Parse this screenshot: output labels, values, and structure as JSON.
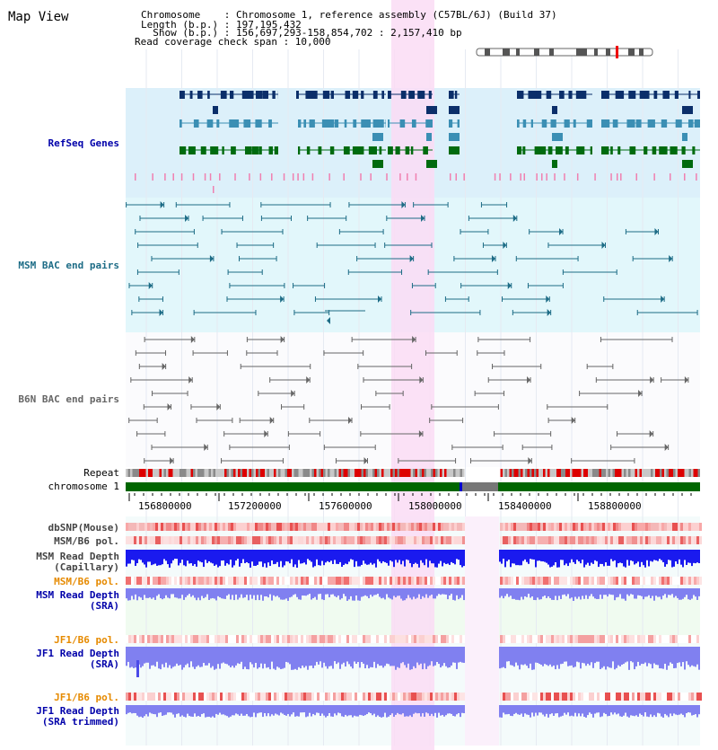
{
  "header": {
    "title": "Map View",
    "chromosome_line": "Chromosome    : Chromosome 1, reference assembly (C57BL/6J) (Build 37)",
    "length_line": "Length (b.p.) : 197,195,432",
    "show_line": "  Show (b.p.) : 156,697,293-158,854,702 : 2,157,410 bp",
    "coverage_line": "Read coverage check span : 10,000"
  },
  "tracks": {
    "refseq": "RefSeq Genes",
    "msm_bac": "MSM BAC end pairs",
    "b6n_bac": "B6N BAC end pairs",
    "repeat": "Repeat",
    "chromosome": "chromosome 1",
    "dbsnp": "dbSNP(Mouse)",
    "msm_b6_pol": "MSM/B6 pol.",
    "msm_depth_cap_1": "MSM Read Depth",
    "msm_depth_cap_2": "(Capillary)",
    "msm_b6_pol_sra": "MSM/B6 pol.",
    "msm_depth_sra_1": "MSM Read Depth",
    "msm_depth_sra_2": "(SRA)",
    "jf1_b6_pol": "JF1/B6 pol.",
    "jf1_depth_sra_1": "JF1 Read Depth",
    "jf1_depth_sra_2": "(SRA)",
    "jf1_b6_pol_trim": "JF1/B6 pol.",
    "jf1_depth_trim_1": "JF1 Read Depth",
    "jf1_depth_trim_2": "(SRA trimmed)"
  },
  "ruler": {
    "ticks": [
      "156800000",
      "157200000",
      "157600000",
      "158000000",
      "158400000",
      "158800000"
    ]
  },
  "colors": {
    "refseq_bg": "#dcf0fa",
    "msm_bg": "#e2f7fb",
    "highlight": "#fadcf5",
    "gene_dark": "#0b2f6a",
    "gene_mid": "#3b8fb4",
    "gene_green": "#006b0f",
    "msm_line": "#1d6c86",
    "b6n_line": "#666666",
    "chrom_green": "#006600",
    "label_blue": "#0000aa",
    "label_orange": "#e68a00",
    "depth_blue": "#1a1aef",
    "depth_light": "#8080f0"
  }
}
